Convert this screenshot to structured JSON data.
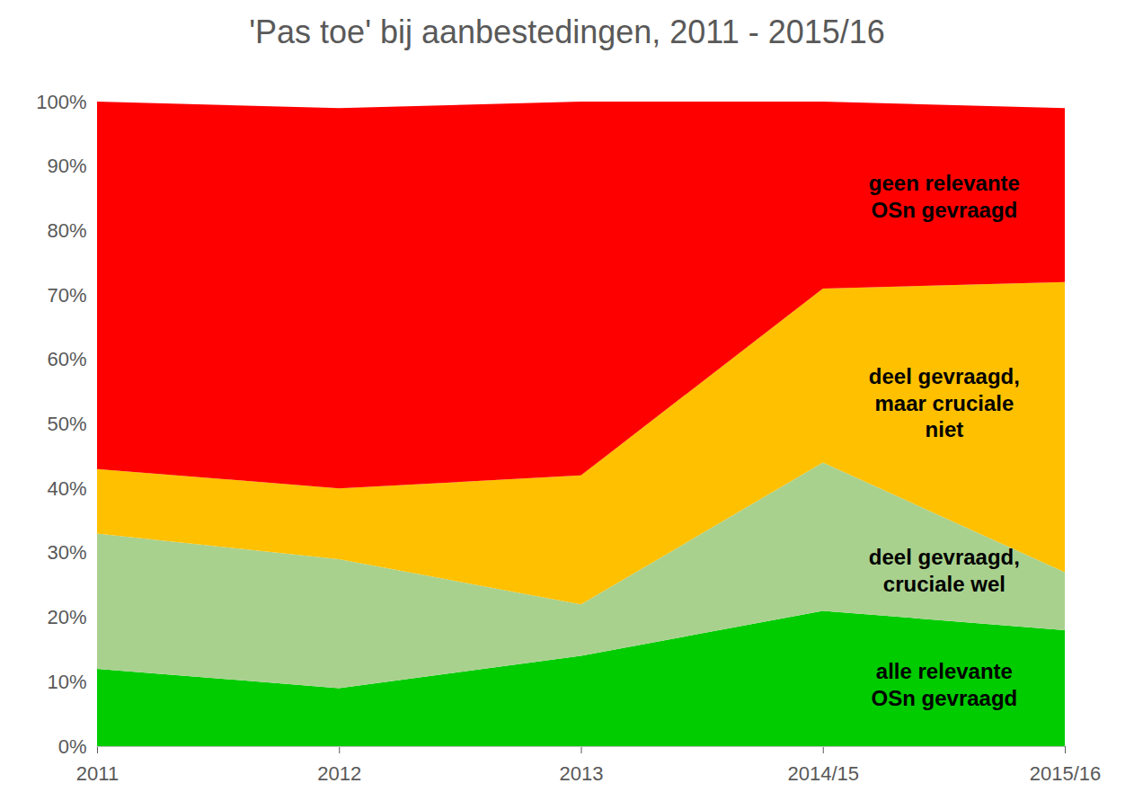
{
  "chart_data": {
    "type": "area",
    "title": "'Pas toe' bij aanbestedingen, 2011 - 2015/16",
    "categories": [
      "2011",
      "2012",
      "2013",
      "2014/15",
      "2015/16"
    ],
    "stacked": true,
    "grid": false,
    "ylim": [
      0,
      100
    ],
    "yticks": [
      {
        "value": 0,
        "label": "0%"
      },
      {
        "value": 10,
        "label": "10%"
      },
      {
        "value": 20,
        "label": "20%"
      },
      {
        "value": 30,
        "label": "30%"
      },
      {
        "value": 40,
        "label": "40%"
      },
      {
        "value": 50,
        "label": "50%"
      },
      {
        "value": 60,
        "label": "60%"
      },
      {
        "value": 70,
        "label": "70%"
      },
      {
        "value": 80,
        "label": "80%"
      },
      {
        "value": 90,
        "label": "90%"
      },
      {
        "value": 100,
        "label": "100%"
      }
    ],
    "series": [
      {
        "name": "alle relevante\nOSn gevraagd",
        "color": "#00cc00",
        "values": [
          12,
          9,
          14,
          21,
          18
        ]
      },
      {
        "name": "deel gevraagd,\ncruciale wel",
        "color": "#a9d18e",
        "values": [
          21,
          20,
          8,
          23,
          9
        ]
      },
      {
        "name": "deel gevraagd,\nmaar cruciale\nniet",
        "color": "#ffc000",
        "values": [
          10,
          11,
          20,
          27,
          45
        ]
      },
      {
        "name": "geen relevante\nOSn gevraagd",
        "color": "#ff0000",
        "values": [
          57,
          59,
          58,
          29,
          27
        ]
      }
    ]
  }
}
